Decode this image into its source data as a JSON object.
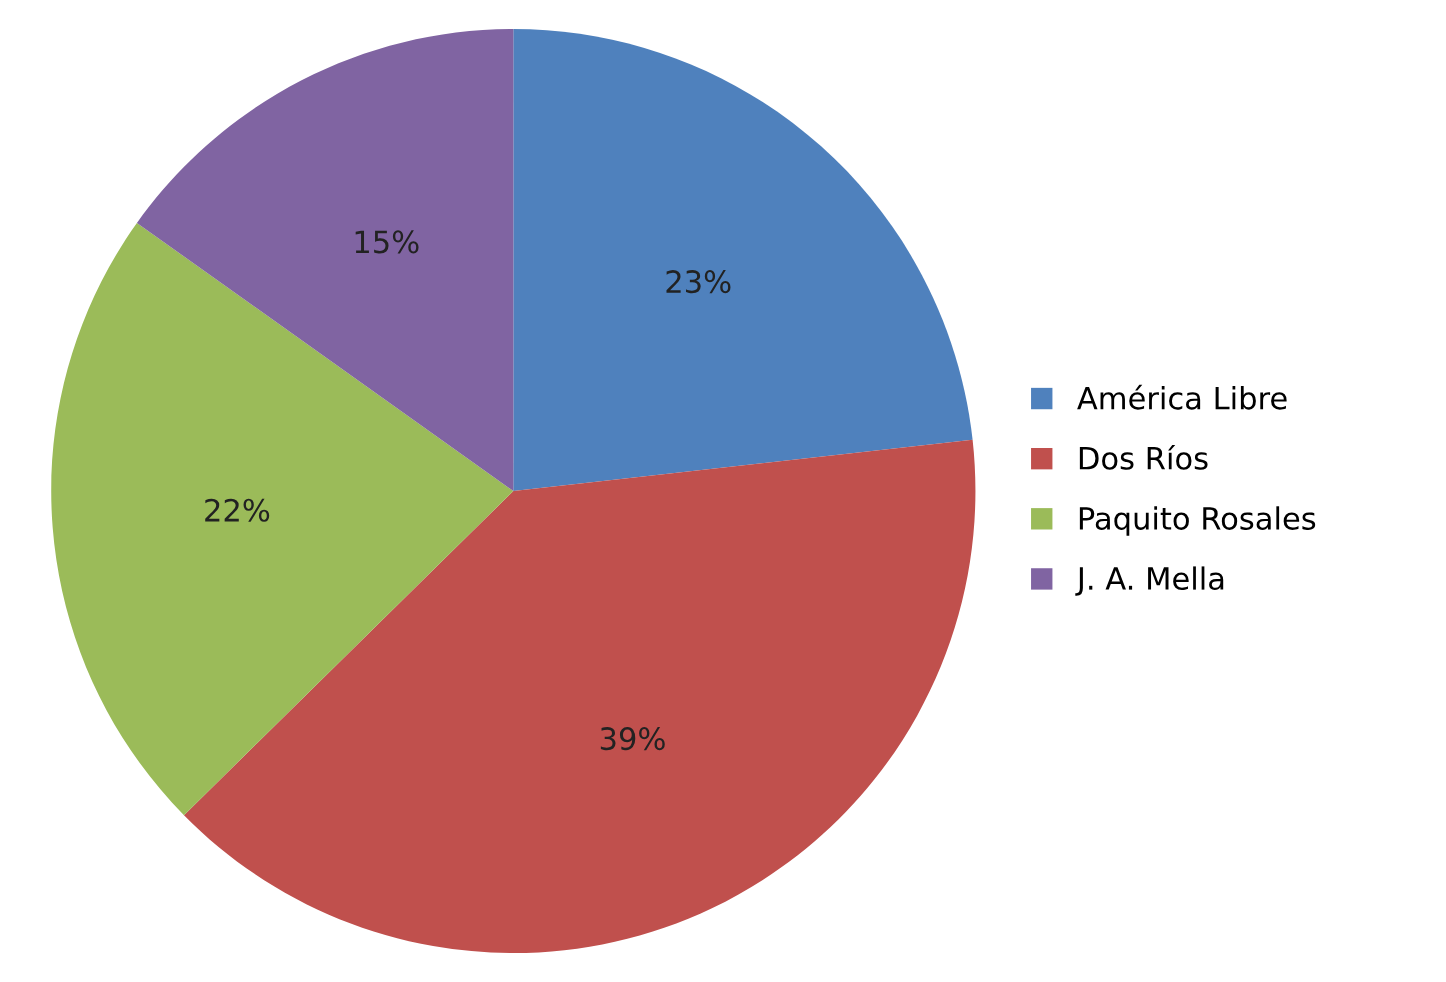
{
  "chart_data": {
    "type": "pie",
    "categories": [
      "América Libre",
      "Dos Ríos",
      "Paquito Rosales",
      "J. A. Mella"
    ],
    "values": [
      23,
      39,
      22,
      15
    ],
    "colors": [
      "#4f81bd",
      "#c0504d",
      "#9bbb59",
      "#8064a2"
    ],
    "value_labels": [
      "23%",
      "39%",
      "22%",
      "15%"
    ],
    "legend": "right"
  }
}
